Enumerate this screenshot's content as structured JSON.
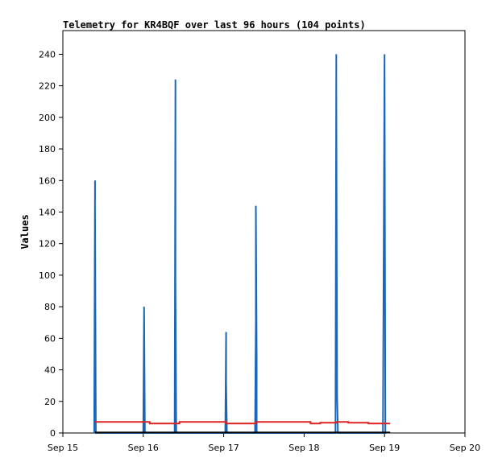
{
  "chart_data": {
    "type": "line",
    "title": "Telemetry for KR4BQF over last 96 hours (104 points)",
    "xlabel": "",
    "ylabel": "Values",
    "xlim": [
      "Sep 15",
      "Sep 20"
    ],
    "ylim": [
      0,
      255
    ],
    "x_ticks": [
      "Sep 15",
      "Sep 16",
      "Sep 17",
      "Sep 18",
      "Sep 19",
      "Sep 20"
    ],
    "y_ticks": [
      0,
      20,
      40,
      60,
      80,
      100,
      120,
      140,
      160,
      180,
      200,
      220,
      240
    ],
    "grid": false,
    "legend": "none",
    "colors": {
      "spikes": "#1a66b8",
      "baseline": "#dd2222",
      "floor": "#000000",
      "axis": "#000000"
    },
    "series": [
      {
        "values_x_days": [
          0.39,
          0.4,
          0.4,
          0.41,
          0.42,
          1.0,
          1.01,
          1.02,
          1.39,
          1.4,
          1.4,
          1.41,
          1.42,
          1.44,
          1.45,
          2.02,
          2.03,
          2.03,
          2.04,
          2.05,
          2.05,
          2.39,
          2.4,
          2.4,
          2.41,
          2.41,
          2.42,
          2.43,
          3.39,
          3.4,
          3.4,
          3.41,
          3.42,
          3.43,
          3.43,
          3.98,
          3.99,
          4.0,
          4.01,
          4.02
        ],
        "values_y": [
          0,
          160,
          145,
          0,
          0,
          0,
          80,
          0,
          0,
          224,
          97,
          0,
          0,
          0,
          0,
          0,
          64,
          32,
          0,
          0,
          0,
          0,
          72,
          144,
          48,
          0,
          0,
          0,
          0,
          240,
          224,
          24,
          0,
          0,
          0,
          0,
          120,
          240,
          0,
          0
        ]
      },
      {
        "values_x_days": [
          0.4,
          1.08,
          1.08,
          1.45,
          1.45,
          2.03,
          2.03,
          2.4,
          2.4,
          3.08,
          3.08,
          3.2,
          3.2,
          3.4,
          3.4,
          3.55,
          3.55,
          3.8,
          3.8,
          4.07
        ],
        "values_y": [
          7,
          7,
          6,
          6,
          7,
          7,
          6,
          6,
          7,
          7,
          6,
          6,
          6.5,
          6.5,
          7,
          7,
          6.5,
          6.5,
          6,
          6
        ]
      },
      {
        "values_x_days": [
          0.4,
          4.07
        ],
        "values_y": [
          0.3,
          0.3
        ]
      }
    ]
  }
}
